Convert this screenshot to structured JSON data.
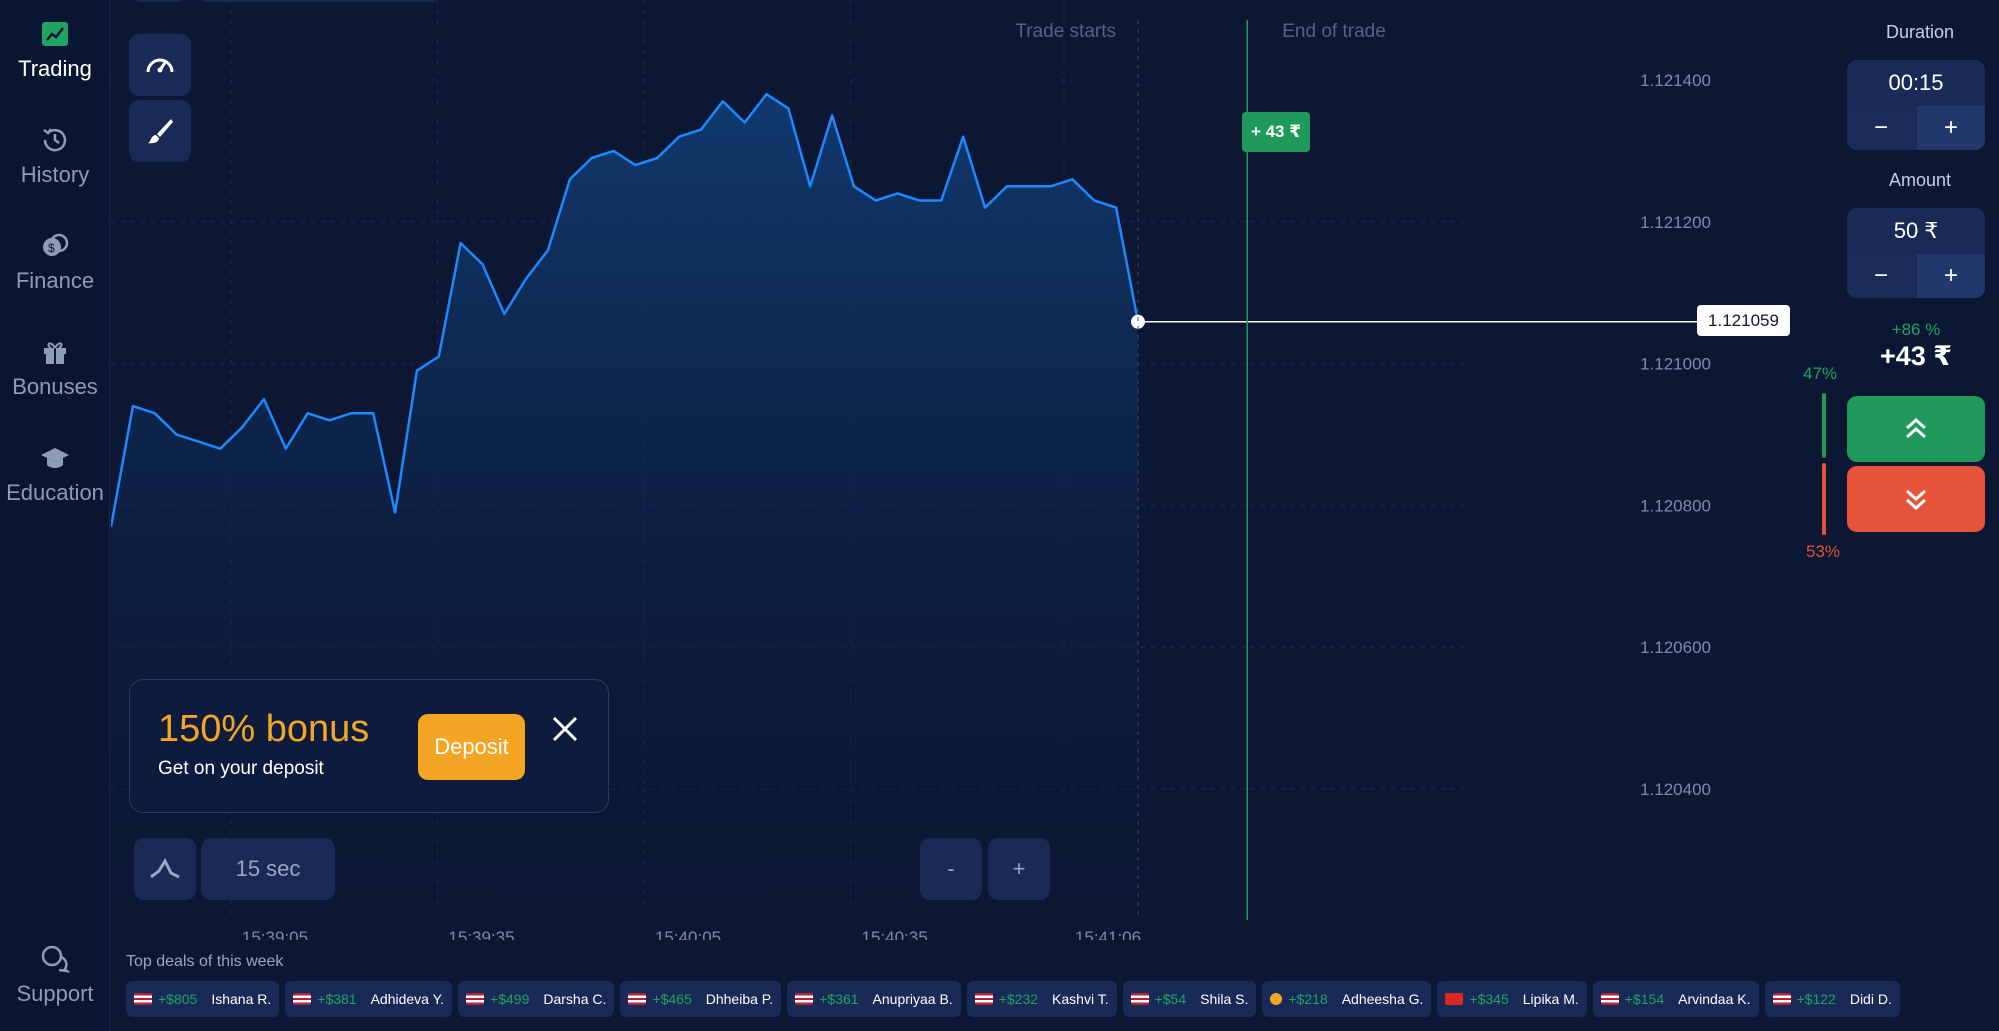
{
  "sidebar": {
    "items": [
      {
        "label": "Trading",
        "icon": "chart-up-icon"
      },
      {
        "label": "History",
        "icon": "history-icon"
      },
      {
        "label": "Finance",
        "icon": "coins-icon"
      },
      {
        "label": "Bonuses",
        "icon": "gift-icon"
      },
      {
        "label": "Education",
        "icon": "graduation-cap-icon"
      }
    ],
    "support_label": "Support"
  },
  "chart": {
    "trade_starts_label": "Trade starts",
    "end_of_trade_label": "End of trade",
    "current_price": "1.121059",
    "profit_tag": "+ 43 ₹",
    "timeframe_label": "15 sec",
    "zoom_out_label": "-",
    "zoom_in_label": "+"
  },
  "chart_data": {
    "type": "area",
    "y_ticks": [
      "1.121400",
      "1.121200",
      "1.121000",
      "1.120800",
      "1.120600",
      "1.120400"
    ],
    "x_ticks": [
      "15:39:05",
      "15:39:35",
      "15:40:05",
      "15:40:35",
      "15:41:06"
    ],
    "x": [
      "15:38:45",
      "15:38:48",
      "15:38:51",
      "15:38:54",
      "15:38:57",
      "15:39:00",
      "15:39:03",
      "15:39:06",
      "15:39:09",
      "15:39:12",
      "15:39:15",
      "15:39:18",
      "15:39:21",
      "15:39:24",
      "15:39:27",
      "15:39:30",
      "15:39:33",
      "15:39:36",
      "15:39:39",
      "15:39:42",
      "15:39:45",
      "15:39:48",
      "15:39:51",
      "15:39:54",
      "15:39:57",
      "15:40:00",
      "15:40:03",
      "15:40:06",
      "15:40:09",
      "15:40:12",
      "15:40:15",
      "15:40:18",
      "15:40:21",
      "15:40:24",
      "15:40:27",
      "15:40:30",
      "15:40:33",
      "15:40:36",
      "15:40:39",
      "15:40:42",
      "15:40:45",
      "15:40:48",
      "15:40:51",
      "15:40:54",
      "15:40:57",
      "15:41:00",
      "15:41:03",
      "15:41:06"
    ],
    "values": [
      1.12077,
      1.12094,
      1.12093,
      1.1209,
      1.12089,
      1.12088,
      1.12091,
      1.12095,
      1.12088,
      1.12093,
      1.12092,
      1.12093,
      1.12093,
      1.12079,
      1.12099,
      1.12101,
      1.12117,
      1.12114,
      1.12107,
      1.12112,
      1.12116,
      1.12126,
      1.12129,
      1.1213,
      1.12128,
      1.12129,
      1.12132,
      1.12133,
      1.12137,
      1.12134,
      1.12138,
      1.12136,
      1.12125,
      1.12135,
      1.12125,
      1.12123,
      1.12124,
      1.12123,
      1.12123,
      1.12132,
      1.12122,
      1.12125,
      1.12125,
      1.12125,
      1.12126,
      1.12123,
      1.12122,
      1.121059
    ],
    "ylim": [
      1.12036,
      1.12146
    ],
    "trade_start": "15:41:06",
    "trade_end": "15:41:21",
    "color": "#1e88ff"
  },
  "bonus": {
    "title": "150% bonus",
    "subtitle": "Get on your deposit",
    "deposit_label": "Deposit"
  },
  "panel": {
    "duration_label": "Duration",
    "duration_value": "00:15",
    "amount_label": "Amount",
    "amount_value": "50 ₹",
    "minus": "−",
    "plus": "+",
    "payout_percent": "+86 %",
    "payout_amount": "+43 ₹",
    "up_percent": "47%",
    "down_percent": "53%"
  },
  "deals": {
    "title": "Top deals of this week",
    "items": [
      {
        "amount": "+$805",
        "name": "Ishana R.",
        "flag": "us"
      },
      {
        "amount": "+$381",
        "name": "Adhideva Y.",
        "flag": "us"
      },
      {
        "amount": "+$499",
        "name": "Darsha C.",
        "flag": "us"
      },
      {
        "amount": "+$465",
        "name": "Dhheiba P.",
        "flag": "us"
      },
      {
        "amount": "+$361",
        "name": "Anupriyaa B.",
        "flag": "us"
      },
      {
        "amount": "+$232",
        "name": "Kashvi T.",
        "flag": "us"
      },
      {
        "amount": "+$54",
        "name": "Shila S.",
        "flag": "us"
      },
      {
        "amount": "+$218",
        "name": "Adheesha G.",
        "flag": "other"
      },
      {
        "amount": "+$345",
        "name": "Lipika M.",
        "flag": "ch"
      },
      {
        "amount": "+$154",
        "name": "Arvindaa K.",
        "flag": "us"
      },
      {
        "amount": "+$122",
        "name": "Didi D.",
        "flag": "us"
      }
    ]
  }
}
